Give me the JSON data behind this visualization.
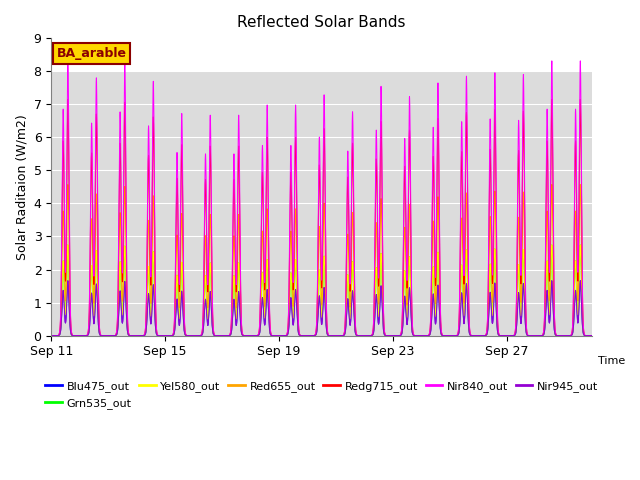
{
  "title": "Reflected Solar Bands",
  "xlabel": "Time",
  "ylabel": "Solar Raditaion (W/m2)",
  "ylim": [
    0,
    9.0
  ],
  "yticks": [
    0.0,
    1.0,
    2.0,
    3.0,
    4.0,
    5.0,
    6.0,
    7.0,
    8.0,
    9.0
  ],
  "xtick_labels": [
    "Sep 11",
    "Sep 15",
    "Sep 19",
    "Sep 23",
    "Sep 27"
  ],
  "xtick_positions": [
    0,
    4,
    8,
    12,
    16
  ],
  "annotation": "BA_arable",
  "annotation_color": "#8B0000",
  "annotation_bg": "#FFD700",
  "series": [
    {
      "label": "Blu475_out",
      "color": "#0000FF",
      "scale": 0.2
    },
    {
      "label": "Grn535_out",
      "color": "#00FF00",
      "scale": 0.33
    },
    {
      "label": "Yel580_out",
      "color": "#FFFF00",
      "scale": 0.33
    },
    {
      "label": "Red655_out",
      "color": "#FFA500",
      "scale": 0.55
    },
    {
      "label": "Redg715_out",
      "color": "#FF0000",
      "scale": 0.86
    },
    {
      "label": "Nir840_out",
      "color": "#FF00FF",
      "scale": 1.0
    },
    {
      "label": "Nir945_out",
      "color": "#9400D3",
      "scale": 0.2
    }
  ],
  "day_peaks": [
    8.1,
    7.6,
    8.0,
    7.5,
    6.55,
    6.5,
    6.5,
    6.8,
    6.8,
    7.1,
    6.6,
    7.35,
    7.05,
    7.45,
    7.65,
    7.75,
    7.7,
    8.1,
    8.1,
    8.35
  ],
  "n_days": 19,
  "plot_bg_light": "#E8E8E8",
  "plot_bg_dark": "#D0D0D0",
  "bg_band_ymin": 0.0,
  "bg_band_ymax": 8.0
}
